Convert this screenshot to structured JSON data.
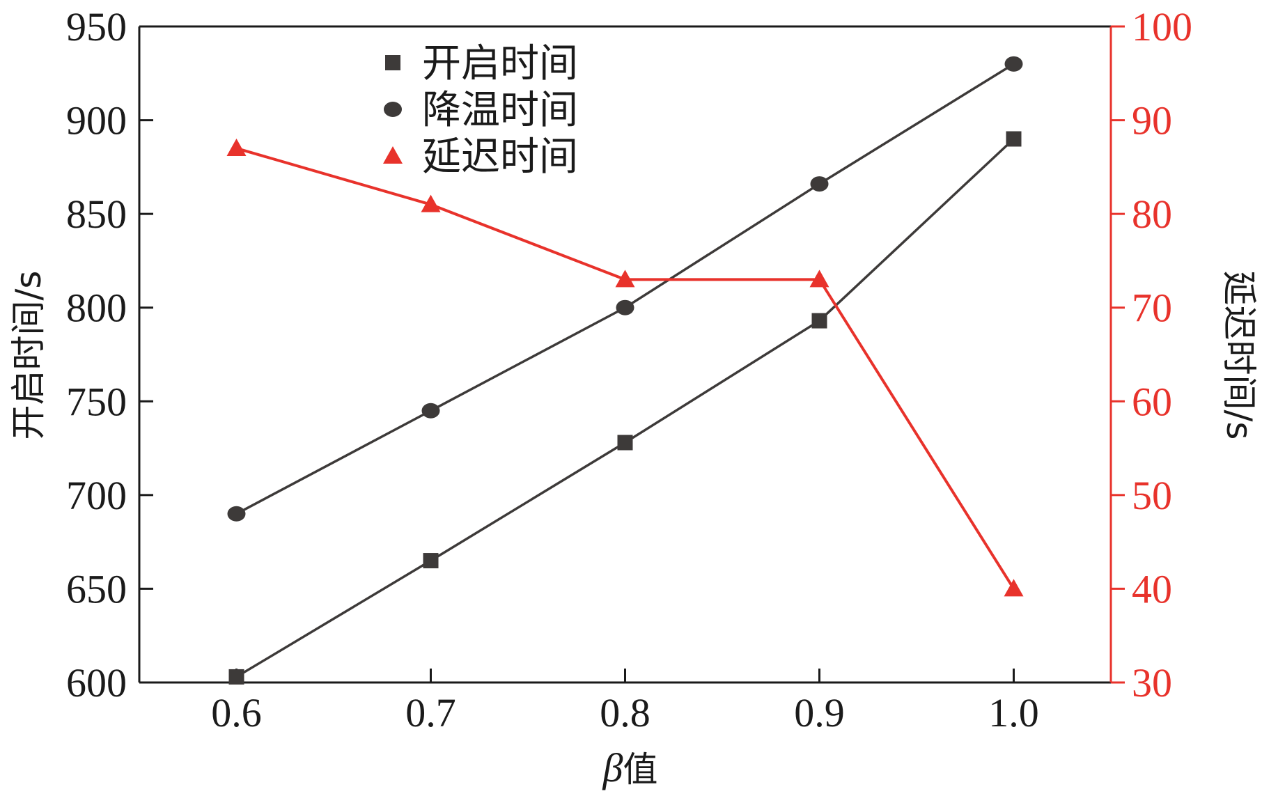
{
  "chart_data": {
    "type": "line",
    "x": [
      0.6,
      0.7,
      0.8,
      0.9,
      1.0
    ],
    "x_tick_labels": [
      "0.6",
      "0.7",
      "0.8",
      "0.9",
      "1.0"
    ],
    "xlim": [
      0.55,
      1.05
    ],
    "xlabel_symbol": "β",
    "xlabel_text": "值",
    "ylabel_left": "开启时间/s",
    "ylabel_right": "延迟时间/s",
    "ylim_left": [
      600,
      950
    ],
    "ylim_right": [
      30,
      100
    ],
    "y_left_ticks": [
      600,
      650,
      700,
      750,
      800,
      850,
      900,
      950
    ],
    "y_right_ticks": [
      30,
      40,
      50,
      60,
      70,
      80,
      90,
      100
    ],
    "grid": false,
    "legend_position": "top-center",
    "series": [
      {
        "name": "开启时间",
        "axis": "left",
        "color": "#3d3a39",
        "marker": "square",
        "values": [
          603,
          665,
          728,
          793,
          890
        ]
      },
      {
        "name": "降温时间",
        "axis": "left",
        "color": "#3d3a39",
        "marker": "circle",
        "values": [
          690,
          745,
          800,
          866,
          930
        ]
      },
      {
        "name": "延迟时间",
        "axis": "right",
        "color": "#e8322b",
        "marker": "triangle",
        "values": [
          87,
          81,
          73,
          73,
          40
        ]
      }
    ],
    "colors": {
      "left_axis": "#1a1a1a",
      "right_axis": "#e8322b",
      "series_dark": "#3d3a39",
      "series_red": "#e8322b"
    }
  }
}
